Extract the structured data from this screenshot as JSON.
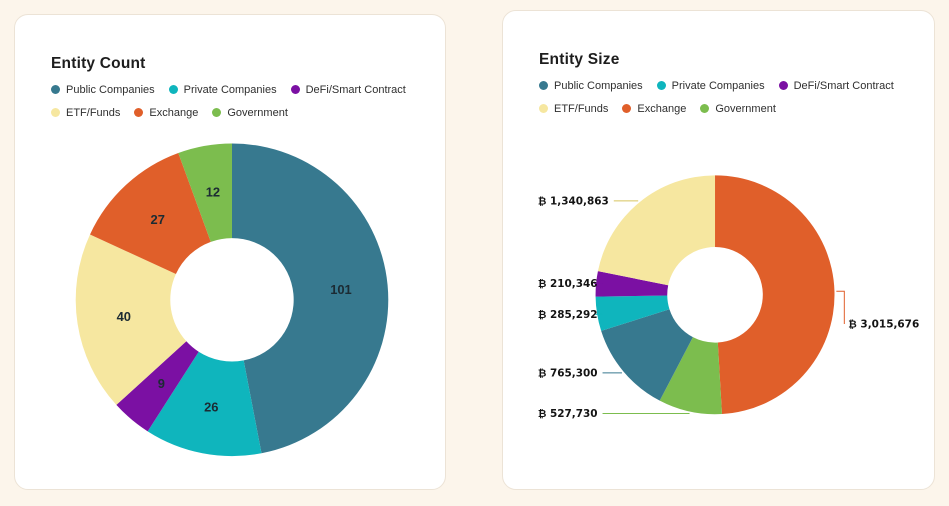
{
  "background": "#fcf5eb",
  "chart_data": [
    {
      "type": "pie",
      "variant": "donut",
      "title": "Entity Count",
      "legend_position": "top",
      "label_style": "inside",
      "categories": [
        "Public Companies",
        "Private Companies",
        "DeFi/Smart Contract",
        "ETF/Funds",
        "Exchange",
        "Government"
      ],
      "values": [
        101,
        26,
        9,
        40,
        27,
        12
      ],
      "colors": [
        "#37798f",
        "#0fb5bd",
        "#7b10a3",
        "#f6e7a0",
        "#e05f2a",
        "#7cbd4e"
      ],
      "order": [
        0,
        1,
        2,
        3,
        4,
        5
      ]
    },
    {
      "type": "pie",
      "variant": "donut",
      "title": "Entity Size",
      "legend_position": "top",
      "label_style": "callout",
      "categories": [
        "Public Companies",
        "Private Companies",
        "DeFi/Smart Contract",
        "ETF/Funds",
        "Exchange",
        "Government"
      ],
      "values": [
        765300,
        285292,
        210346,
        1340863,
        3015676,
        527730
      ],
      "value_labels": [
        "₿ 765,300",
        "₿ 285,292",
        "₿ 210,346",
        "₿ 1,340,863",
        "₿ 3,015,676",
        "₿ 527,730"
      ],
      "colors": [
        "#37798f",
        "#0fb5bd",
        "#7b10a3",
        "#f6e7a0",
        "#e05f2a",
        "#7cbd4e"
      ],
      "line_colors": [
        "#37798f",
        "#0fb5bd",
        "#7b10a3",
        "#d8c45e",
        "#e05f2a",
        "#7cbd4e"
      ],
      "order": [
        4,
        5,
        0,
        1,
        2,
        3
      ]
    }
  ]
}
